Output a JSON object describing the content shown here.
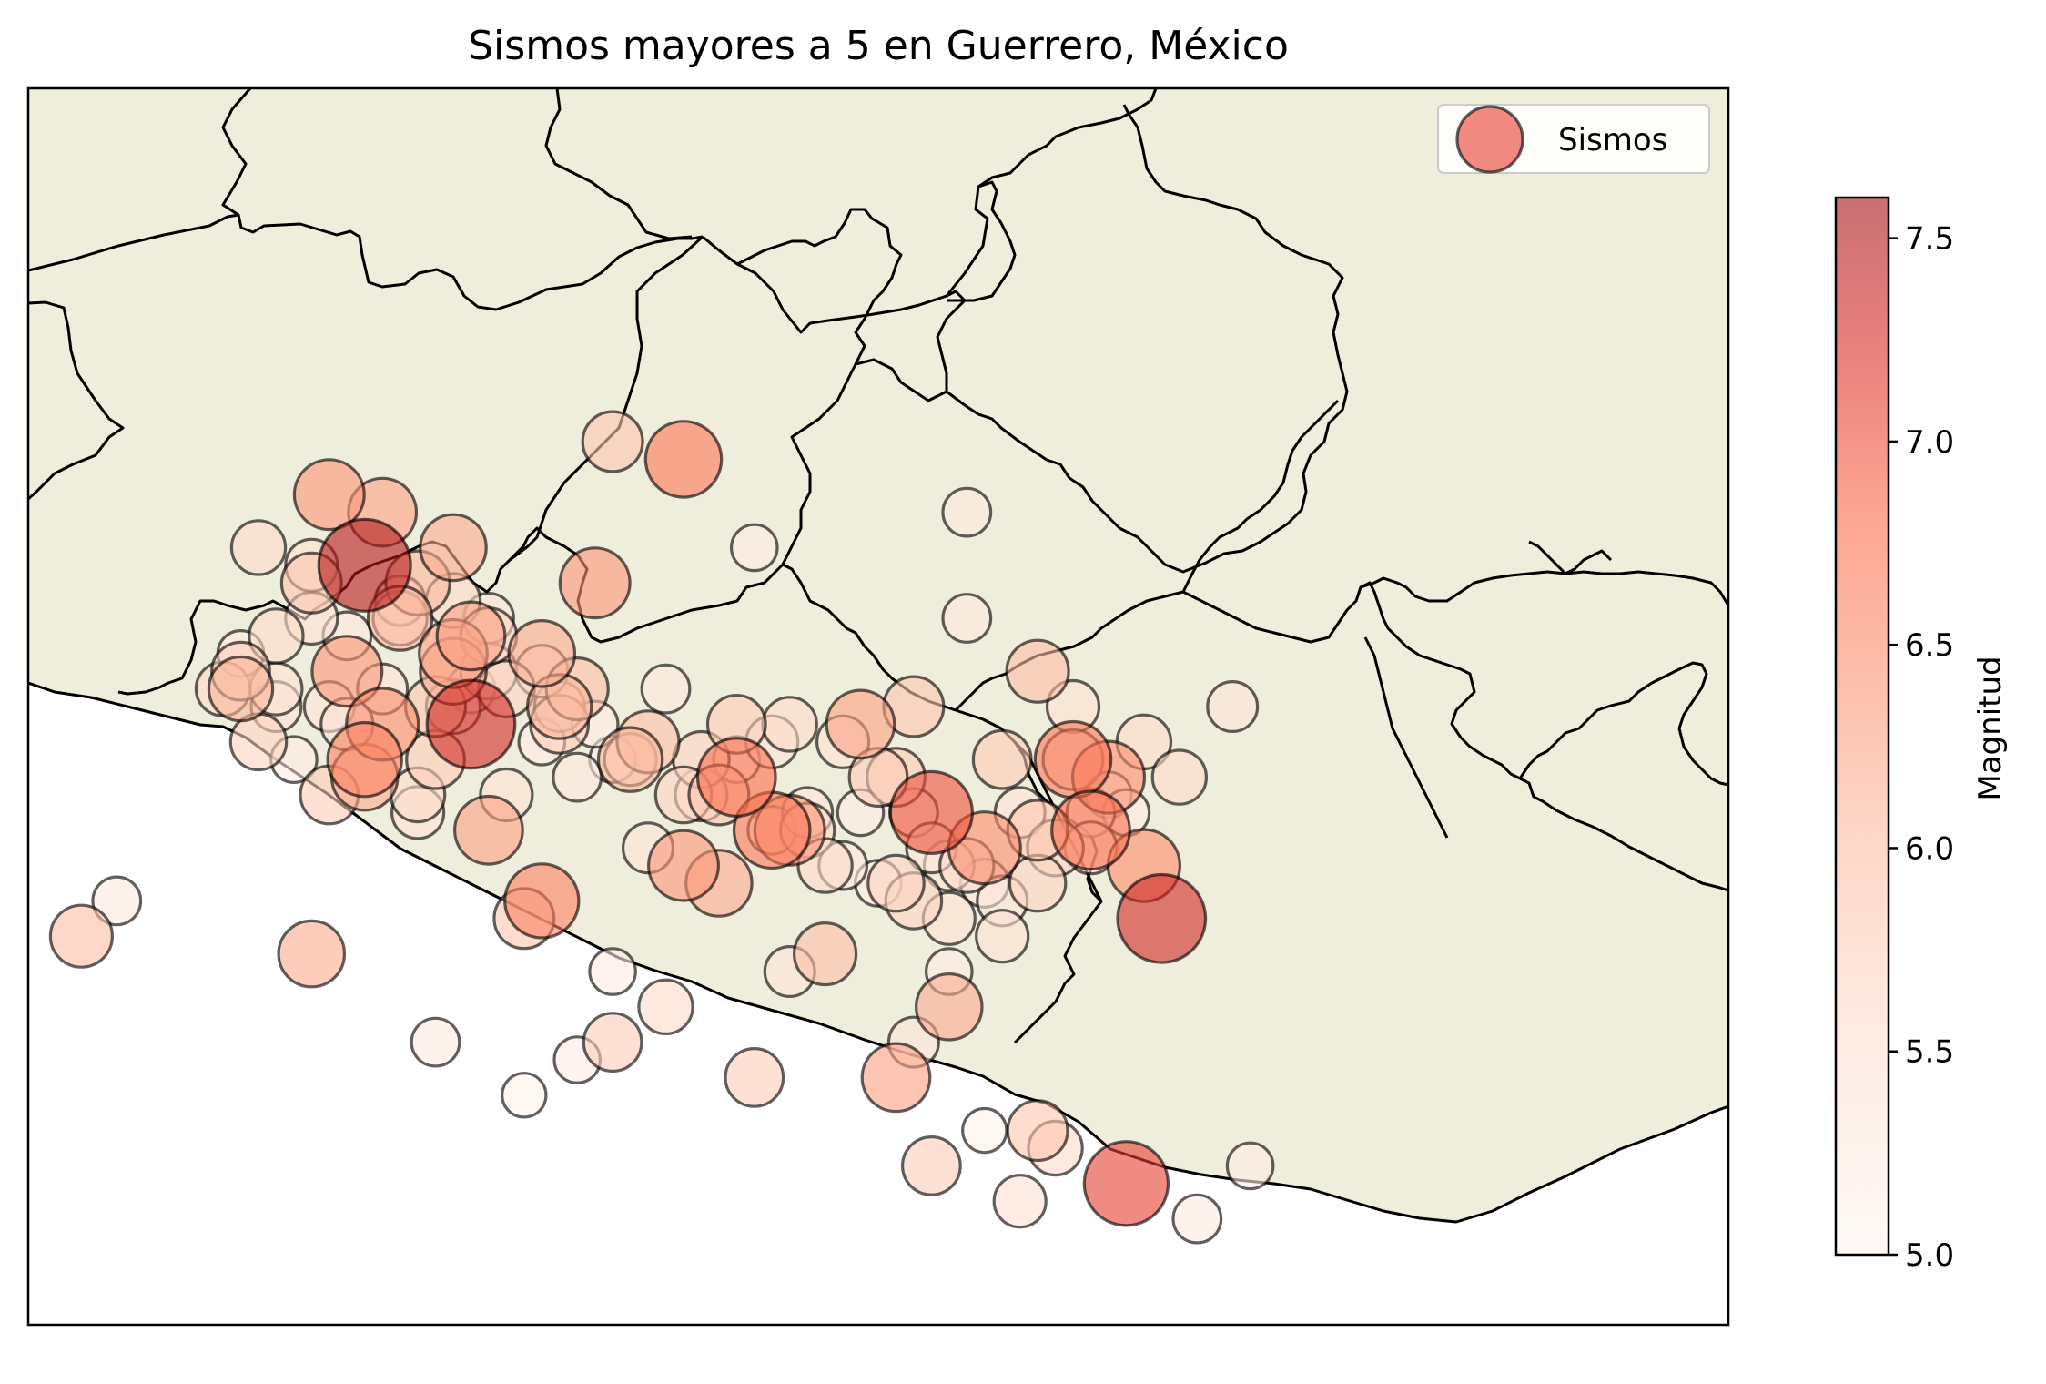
{
  "chart_data": {
    "type": "scatter",
    "title": "Sismos mayores a 5 en Guerrero, México",
    "xlabel": "",
    "ylabel": "",
    "legend": {
      "entries": [
        "Sismos"
      ],
      "placement": "top-right",
      "marker_color": "#f08a80"
    },
    "colorbar": {
      "label": "Magnitud",
      "range": [
        5.0,
        7.6
      ],
      "ticks": [
        "5.0",
        "5.5",
        "6.0",
        "6.5",
        "7.0",
        "7.5"
      ],
      "colormap": "Reds",
      "alpha": 0.6
    },
    "map": {
      "land_color": "#efeddb",
      "ocean_color": "#ffffff",
      "borders": true
    },
    "series": [
      {
        "name": "Sismos",
        "x": [
          -102.2,
          -101.9,
          -101.5,
          -101.8,
          -102.0,
          -101.7,
          -101.5,
          -101.4,
          -102.5,
          -102.6,
          -102.0,
          -100.6,
          -100.2,
          -101.5,
          -101.0,
          -100.8,
          -101.6,
          -102.1,
          -101.8,
          -101.3,
          -101.9,
          -102.2,
          -102.8,
          -102.7,
          -102.3,
          -103.4,
          -102.1,
          -100.9,
          -100.6,
          -100.1,
          -99.9,
          -99.5,
          -99.2,
          -99.0,
          -98.8,
          -98.5,
          -98.2,
          -97.9,
          -97.8,
          -98.0,
          -97.6,
          -97.5,
          -98.4,
          -98.7,
          -99.6,
          -100.3,
          -100.6,
          -100.8,
          -101.1,
          -101.6,
          -102.3,
          -101.0,
          -100.0,
          -99.4,
          -98.7,
          -98.9,
          -99.0,
          -98.5,
          -98.8,
          -98.3,
          -97.7,
          -97.3,
          -97.0,
          -98.1,
          -98.2,
          -99.7,
          -100.2,
          -100.4,
          -101.3,
          -101.7,
          -102.5,
          -102.7,
          -100.7,
          -99.8,
          -98.6,
          -98.9,
          -99.6,
          -100.5,
          -100.9,
          -101.2,
          -101.4,
          -101.8,
          -102.3,
          -102.6,
          -98.4,
          -98.0,
          -98.2,
          -98.6,
          -97.9,
          -98.7,
          -98.9,
          -99.1,
          -99.3,
          -99.5,
          -100.0,
          -99.7,
          -99.2,
          -98.8,
          -99.9,
          -100.3,
          -101.0,
          -101.3,
          -101.5,
          -101.9,
          -102.0,
          -102.4,
          -102.1,
          -97.8,
          -97.6,
          -98.5,
          -98.1,
          -98.3,
          -99.8,
          -100.6,
          -101.1,
          -102.7,
          -103.6,
          -102.2,
          -101.7,
          -101.2,
          -100.8,
          -100.5,
          -100.2,
          -99.9,
          -99.6,
          -99.3,
          -99.1,
          -98.9,
          -98.6,
          -98.4,
          -98.2,
          -97.9,
          -97.7,
          -97.4,
          -97.1,
          -98.0,
          -101.0,
          -101.4,
          -100.1,
          -100.4,
          -100.9,
          -101.5,
          -101.8,
          -102.5,
          -102.3,
          -101.6,
          -101.3,
          -100.7,
          -99.7,
          -99.4,
          -99.0,
          -98.7
        ],
        "y": [
          18.1,
          18.0,
          17.8,
          17.4,
          17.7,
          17.6,
          17.2,
          16.8,
          17.0,
          16.7,
          16.6,
          18.4,
          18.3,
          17.5,
          17.2,
          17.0,
          16.9,
          17.3,
          17.5,
          17.1,
          16.8,
          16.4,
          17.0,
          17.2,
          17.4,
          15.8,
          17.1,
          16.9,
          16.6,
          16.6,
          16.5,
          16.3,
          16.8,
          16.5,
          16.3,
          16.1,
          16.2,
          16.3,
          16.4,
          16.6,
          16.0,
          15.7,
          15.6,
          15.4,
          15.4,
          15.2,
          15.0,
          14.9,
          14.7,
          15.0,
          15.5,
          15.8,
          15.9,
          15.5,
          15.2,
          15.0,
          14.8,
          14.5,
          14.3,
          14.1,
          14.2,
          14.0,
          14.3,
          14.4,
          14.5,
          16.2,
          16.0,
          16.1,
          16.2,
          16.3,
          16.9,
          17.1,
          17.6,
          17.8,
          18.0,
          16.9,
          16.8,
          16.6,
          16.8,
          17.0,
          17.3,
          17.4,
          17.6,
          17.8,
          16.6,
          16.9,
          17.1,
          17.4,
          16.2,
          16.0,
          15.8,
          15.9,
          16.0,
          16.2,
          16.4,
          16.7,
          16.3,
          16.1,
          16.8,
          17.0,
          17.1,
          17.3,
          16.9,
          17.0,
          16.5,
          16.6,
          16.8,
          16.5,
          16.7,
          15.9,
          16.1,
          16.3,
          14.8,
          15.4,
          15.7,
          17.0,
          15.6,
          16.9,
          16.4,
          16.4,
          16.5,
          16.6,
          16.4,
          16.6,
          16.2,
          16.7,
          16.5,
          16.3,
          16.0,
          15.8,
          15.9,
          16.1,
          16.3,
          16.5,
          16.9,
          16.6,
          16.7,
          17.0,
          16.4,
          16.7,
          16.9,
          17.1,
          17.5,
          17.3,
          17.7,
          16.6,
          17.4,
          16.8,
          16.2,
          16.0,
          15.9,
          15.7
        ],
        "mag": [
          6.4,
          6.3,
          6.2,
          5.6,
          7.5,
          6.1,
          6.3,
          7.3,
          5.5,
          5.7,
          6.6,
          5.9,
          6.7,
          5.6,
          6.2,
          6.0,
          5.9,
          5.3,
          5.4,
          5.7,
          6.5,
          5.8,
          5.6,
          5.2,
          5.5,
          5.3,
          6.4,
          6.1,
          5.2,
          5.7,
          6.8,
          5.4,
          6.3,
          5.8,
          7.0,
          6.5,
          5.9,
          5.3,
          5.2,
          6.7,
          6.5,
          7.3,
          5.5,
          5.2,
          5.4,
          5.6,
          5.8,
          5.2,
          5.1,
          5.3,
          6.2,
          6.6,
          6.2,
          6.0,
          6.2,
          5.4,
          6.3,
          5.1,
          5.8,
          5.5,
          7.1,
          5.3,
          5.2,
          5.6,
          5.9,
          6.7,
          6.4,
          5.4,
          6.3,
          5.5,
          5.4,
          5.8,
          6.4,
          5.2,
          5.3,
          5.9,
          5.6,
          5.5,
          5.8,
          5.7,
          6.3,
          6.1,
          5.9,
          5.6,
          5.8,
          5.5,
          6.0,
          5.3,
          6.8,
          5.4,
          5.7,
          5.2,
          5.3,
          5.6,
          5.9,
          5.5,
          5.2,
          5.4,
          5.8,
          5.3,
          5.5,
          5.7,
          5.6,
          5.4,
          6.2,
          5.2,
          5.5,
          6.5,
          5.6,
          5.3,
          5.7,
          5.4,
          5.8,
          5.2,
          5.9,
          6.1,
          6.0,
          5.4,
          5.6,
          5.5,
          5.3,
          6.1,
          5.7,
          5.2,
          6.4,
          5.5,
          5.8,
          5.3,
          5.6,
          5.4,
          5.7,
          5.5,
          5.2,
          5.6,
          5.4,
          5.9,
          5.2,
          5.3,
          5.5,
          6.0,
          5.4,
          6.2,
          5.3,
          5.6,
          5.5,
          5.8,
          5.4,
          5.2,
          5.3,
          5.6,
          5.7,
          5.5
        ]
      }
    ]
  }
}
